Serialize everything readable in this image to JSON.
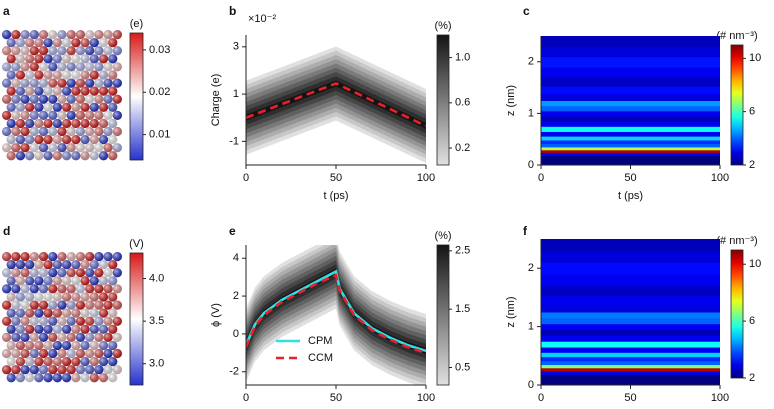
{
  "chart_data": [
    {
      "type": "image",
      "label": "a",
      "colormap": "bwr",
      "colorbar_label": "(e)",
      "clim": [
        0.004,
        0.034
      ],
      "cticks": [
        0.01,
        0.02,
        0.03
      ]
    },
    {
      "type": "density",
      "label": "b",
      "ylabel": "Charge (e)",
      "xlabel": "t (ps)",
      "annotation": "×10⁻²",
      "xlim": [
        0,
        100
      ],
      "xticks": [
        0,
        50,
        100
      ],
      "ylim": [
        -2,
        3.5
      ],
      "yticks": [
        -1,
        1,
        3
      ],
      "colormap": "gray",
      "colorbar_label": "(%)",
      "clim": [
        0.05,
        1.2
      ],
      "cticks": [
        0.2,
        0.6,
        {
          "value": 1,
          "label": "1.0"
        }
      ],
      "series": [
        {
          "color": "#e8202a",
          "style": "dashed",
          "x": [
            0,
            50,
            100
          ],
          "values": [
            0,
            1.45,
            -0.35
          ]
        }
      ]
    },
    {
      "type": "heatmap",
      "label": "c",
      "ylabel": "z (nm)",
      "xlabel": "t (ps)",
      "xlim": [
        0,
        100
      ],
      "xticks": [
        0,
        50,
        100
      ],
      "ylim": [
        0,
        2.5
      ],
      "yticks": [
        0,
        1,
        2
      ],
      "colormap": "jet",
      "colorbar_label": "(# nm⁻³)",
      "clim": [
        2,
        11
      ],
      "cticks": [
        2,
        6,
        10
      ],
      "y": [
        0,
        0.15,
        0.22,
        0.27,
        0.32,
        0.38,
        0.45,
        0.52,
        0.6,
        0.7,
        0.8,
        0.9,
        1.0,
        1.1,
        1.2,
        1.3,
        1.45,
        1.6,
        1.8,
        2.0,
        2.2,
        2.4
      ],
      "values": [
        2,
        2,
        3,
        10.5,
        7,
        4,
        3.5,
        5,
        3,
        5.5,
        3,
        2.5,
        3,
        4,
        4.5,
        2.8,
        3.2,
        2.6,
        3,
        3.3,
        2.8,
        2.5
      ]
    },
    {
      "type": "image",
      "label": "d",
      "colormap": "bwr",
      "colorbar_label": "(V)",
      "clim": [
        2.75,
        4.3
      ],
      "cticks": [
        {
          "value": 3,
          "label": "3.0"
        },
        3.5,
        {
          "value": 4,
          "label": "4.0"
        }
      ]
    },
    {
      "type": "density",
      "label": "e",
      "ylabel": "ϕ (V)",
      "xlabel": "t (ps)",
      "legend": "lower left",
      "xlim": [
        0,
        100
      ],
      "xticks": [
        0,
        50,
        100
      ],
      "ylim": [
        -2.7,
        4.7
      ],
      "yticks": [
        -2,
        0,
        2,
        4
      ],
      "colormap": "gray",
      "colorbar_label": "(%)",
      "clim": [
        0.2,
        2.6
      ],
      "cticks": [
        0.5,
        1.5,
        2.5
      ],
      "series": [
        {
          "name": "CPM",
          "color": "#2de0e6",
          "style": "solid",
          "x": [
            0,
            5,
            10,
            20,
            30,
            40,
            50,
            52,
            60,
            70,
            80,
            90,
            100
          ],
          "values": [
            -0.6,
            0.5,
            1.1,
            1.8,
            2.3,
            2.8,
            3.3,
            2.4,
            1.1,
            0.3,
            -0.2,
            -0.6,
            -0.9
          ]
        },
        {
          "name": "CCM",
          "color": "#e8202a",
          "style": "dashed",
          "x": [
            0,
            5,
            10,
            20,
            30,
            40,
            50,
            52,
            60,
            70,
            80,
            90,
            100
          ],
          "values": [
            -0.7,
            0.4,
            1.0,
            1.7,
            2.2,
            2.7,
            3.1,
            2.3,
            1.0,
            0.2,
            -0.3,
            -0.7,
            -1.0
          ]
        }
      ]
    },
    {
      "type": "heatmap",
      "label": "f",
      "ylabel": "z (nm)",
      "xlabel": "t (ps)",
      "xlim": [
        0,
        100
      ],
      "xticks": [
        0,
        50,
        100
      ],
      "ylim": [
        0,
        2.5
      ],
      "yticks": [
        0,
        1,
        2
      ],
      "colormap": "jet",
      "colorbar_label": "(# nm⁻³)",
      "clim": [
        2,
        11
      ],
      "cticks": [
        2,
        6,
        10
      ],
      "y": [
        0,
        0.15,
        0.22,
        0.27,
        0.32,
        0.38,
        0.45,
        0.52,
        0.6,
        0.7,
        0.8,
        0.9,
        1.0,
        1.1,
        1.2,
        1.3,
        1.45,
        1.6,
        1.8,
        2.0,
        2.2,
        2.4
      ],
      "values": [
        2,
        2,
        3,
        10.5,
        6.5,
        4,
        3.5,
        5,
        3,
        5.5,
        3,
        2.5,
        3,
        4,
        4.2,
        2.8,
        3,
        2.6,
        3,
        3.2,
        2.8,
        2.5
      ]
    }
  ]
}
